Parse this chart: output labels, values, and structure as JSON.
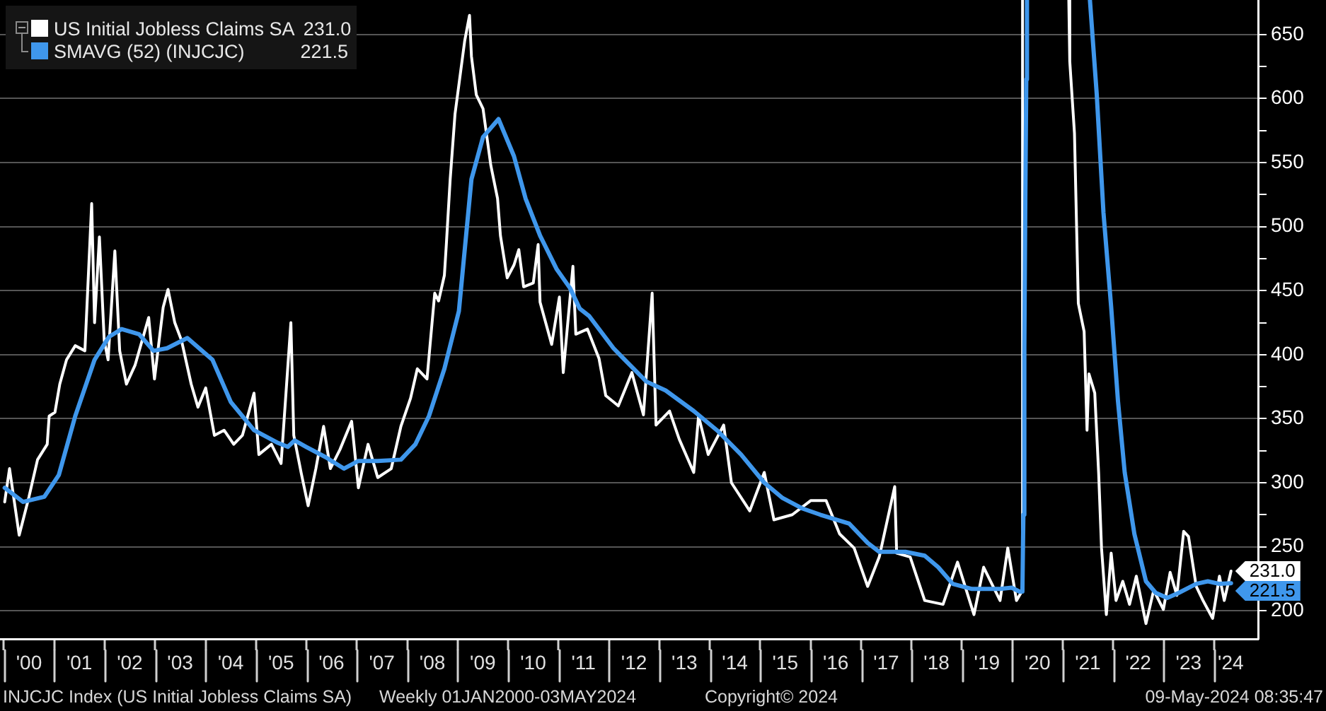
{
  "chart_data": {
    "type": "line",
    "series": [
      {
        "name": "US Initial Jobless Claims SA",
        "color": "#ffffff",
        "x": [
          "2000-01-07",
          "2000-02-11",
          "2000-04-21",
          "2000-07-01",
          "2000-09-01",
          "2000-11-10",
          "2000-11-24",
          "2001-01-05",
          "2001-02-09",
          "2001-03-30",
          "2001-06-01",
          "2001-08-10",
          "2001-09-28",
          "2001-10-19",
          "2001-11-23",
          "2001-12-28",
          "2002-01-25",
          "2002-03-15",
          "2002-04-19",
          "2002-06-07",
          "2002-08-09",
          "2002-11-15",
          "2002-12-27",
          "2003-02-28",
          "2003-04-04",
          "2003-05-23",
          "2003-07-11",
          "2003-09-19",
          "2003-11-07",
          "2004-01-02",
          "2004-03-05",
          "2004-05-14",
          "2004-07-23",
          "2004-09-24",
          "2004-12-17",
          "2005-01-21",
          "2005-04-22",
          "2005-07-01",
          "2005-09-10",
          "2005-10-01",
          "2005-11-25",
          "2006-01-13",
          "2006-03-10",
          "2006-05-05",
          "2006-06-23",
          "2006-09-01",
          "2006-11-24",
          "2007-01-12",
          "2007-03-23",
          "2007-06-01",
          "2007-09-07",
          "2007-11-16",
          "2008-01-25",
          "2008-03-14",
          "2008-05-23",
          "2008-07-18",
          "2008-08-15",
          "2008-09-26",
          "2008-10-10",
          "2008-11-07",
          "2008-12-12",
          "2009-02-20",
          "2009-03-27",
          "2009-04-10",
          "2009-05-15",
          "2009-07-03",
          "2009-08-28",
          "2009-10-16",
          "2009-11-06",
          "2009-12-25",
          "2010-02-12",
          "2010-03-19",
          "2010-04-23",
          "2010-07-02",
          "2010-08-06",
          "2010-08-20",
          "2010-11-12",
          "2011-01-07",
          "2011-02-04",
          "2011-04-15",
          "2011-05-06",
          "2011-07-29",
          "2011-10-21",
          "2011-12-09",
          "2012-03-09",
          "2012-06-15",
          "2012-09-07",
          "2012-11-09",
          "2012-12-07",
          "2013-03-15",
          "2013-05-24",
          "2013-09-06",
          "2013-10-11",
          "2013-12-20",
          "2014-04-11",
          "2014-06-06",
          "2014-10-17",
          "2015-01-30",
          "2015-04-10",
          "2015-08-21",
          "2016-01-01",
          "2016-04-22",
          "2016-07-29",
          "2016-11-11",
          "2017-02-17",
          "2017-05-12",
          "2017-09-01",
          "2017-09-15",
          "2017-12-22",
          "2018-04-06",
          "2018-08-17",
          "2018-11-30",
          "2019-03-29",
          "2019-06-07",
          "2019-10-04",
          "2019-11-29",
          "2020-01-31",
          "2020-03-14",
          "2020-03-15",
          "2020-09-01",
          "2021-02-13",
          "2021-02-20",
          "2021-03-26",
          "2021-04-23",
          "2021-06-04",
          "2021-06-25",
          "2021-07-09",
          "2021-08-20",
          "2021-09-17",
          "2021-10-08",
          "2021-11-12",
          "2021-12-17",
          "2022-01-21",
          "2022-03-11",
          "2022-04-29",
          "2022-06-17",
          "2022-08-26",
          "2022-10-21",
          "2022-12-30",
          "2023-02-17",
          "2023-04-07",
          "2023-05-26",
          "2023-06-30",
          "2023-08-25",
          "2023-10-13",
          "2023-12-22",
          "2024-02-09",
          "2024-03-15",
          "2024-05-03"
        ],
        "values": [
          285,
          311,
          259,
          289,
          318,
          330,
          352,
          355,
          377,
          396,
          407,
          403,
          518,
          425,
          492,
          411,
          396,
          481,
          403,
          377,
          392,
          429,
          381,
          437,
          451,
          425,
          411,
          377,
          359,
          374,
          337,
          341,
          330,
          337,
          370,
          322,
          330,
          315,
          425,
          337,
          307,
          282,
          311,
          344,
          311,
          326,
          348,
          296,
          330,
          304,
          311,
          344,
          366,
          389,
          381,
          448,
          442,
          462,
          486,
          537,
          588,
          645,
          665,
          633,
          603,
          592,
          548,
          522,
          493,
          460,
          470,
          482,
          453,
          456,
          486,
          441,
          408,
          445,
          386,
          469,
          416,
          420,
          397,
          368,
          360,
          386,
          353,
          448,
          345,
          356,
          334,
          308,
          352,
          322,
          345,
          300,
          278,
          308,
          271,
          275,
          286,
          286,
          260,
          249,
          219,
          242,
          297,
          245,
          242,
          208,
          205,
          238,
          197,
          234,
          208,
          249,
          208,
          216,
          677,
          null,
          677,
          629,
          573,
          440,
          418,
          341,
          385,
          370,
          308,
          249,
          197,
          245,
          208,
          223,
          205,
          227,
          190,
          216,
          201,
          230,
          212,
          262,
          258,
          219,
          208,
          194,
          227,
          208,
          231
        ],
        "value_labels": [
          null,
          null,
          null,
          null,
          null,
          null,
          null,
          null,
          null,
          null,
          null,
          null,
          null,
          null,
          null,
          null,
          null,
          null,
          null,
          null,
          null,
          null,
          null,
          null,
          null,
          null,
          null,
          null,
          null,
          null,
          null,
          null,
          null,
          null,
          null,
          null,
          null,
          null,
          null,
          null,
          null,
          null,
          null,
          null,
          null,
          null,
          null,
          null,
          null,
          null,
          null,
          null,
          null,
          null,
          null,
          null,
          null,
          null,
          null,
          null,
          null,
          null,
          null,
          null,
          null,
          null,
          null,
          null,
          null,
          null,
          null,
          null,
          null,
          null,
          null,
          null,
          null,
          null,
          null,
          null,
          null,
          null,
          null,
          null,
          null,
          null,
          null,
          null,
          null,
          null,
          null,
          null,
          null,
          null,
          null,
          null,
          null,
          null,
          null,
          null,
          null,
          null,
          null,
          null,
          null,
          null,
          null,
          null,
          null,
          null,
          null,
          null,
          null,
          null,
          null,
          null,
          null,
          null,
          null,
          null,
          null,
          null,
          null,
          null,
          null,
          null,
          null,
          null,
          null,
          null,
          null,
          null,
          null,
          null,
          null,
          null,
          null,
          null,
          null,
          null,
          null,
          null,
          null,
          null,
          null,
          null,
          null,
          null,
          "231.0"
        ]
      },
      {
        "name": "SMAVG (52) (INJCJC)",
        "color": "#3f97ec",
        "x": [
          "2000-01-07",
          "2000-05-19",
          "2000-10-20",
          "2001-02-02",
          "2001-06-01",
          "2001-10-19",
          "2002-02-01",
          "2002-05-03",
          "2002-09-06",
          "2002-12-20",
          "2003-03-28",
          "2003-08-22",
          "2004-02-20",
          "2004-07-02",
          "2004-12-17",
          "2005-06-10",
          "2005-08-19",
          "2005-10-07",
          "2005-12-30",
          "2006-05-19",
          "2006-09-29",
          "2007-01-12",
          "2007-06-01",
          "2007-11-16",
          "2008-02-29",
          "2008-06-06",
          "2008-09-26",
          "2009-01-09",
          "2009-04-10",
          "2009-07-03",
          "2009-10-23",
          "2010-02-12",
          "2010-05-07",
          "2010-08-20",
          "2010-12-17",
          "2011-03-25",
          "2011-06-03",
          "2011-08-12",
          "2012-02-03",
          "2012-04-06",
          "2012-09-28",
          "2013-02-15",
          "2013-09-06",
          "2014-02-21",
          "2014-08-15",
          "2015-01-30",
          "2015-06-12",
          "2015-10-30",
          "2016-03-11",
          "2016-10-07",
          "2017-02-17",
          "2017-05-12",
          "2017-11-17",
          "2018-04-06",
          "2018-07-13",
          "2018-10-26",
          "2019-03-15",
          "2019-10-04",
          "2019-12-27",
          "2020-02-21",
          "2020-03-14",
          "2020-03-21",
          "2020-03-28",
          "2020-04-04",
          "2020-04-11",
          "2020-04-16",
          "2020-12-04",
          "2021-07-16",
          "2021-09-03",
          "2021-10-22",
          "2021-12-17",
          "2022-02-04",
          "2022-03-25",
          "2022-06-03",
          "2022-08-26",
          "2022-11-04",
          "2023-01-27",
          "2023-04-21",
          "2023-08-25",
          "2023-11-17",
          "2024-02-09",
          "2024-05-03"
        ],
        "values": [
          296,
          285,
          289,
          306,
          352,
          396,
          414,
          420,
          416,
          403,
          405,
          413,
          396,
          363,
          341,
          331,
          328,
          333,
          328,
          320,
          311,
          317,
          317,
          318,
          330,
          352,
          389,
          434,
          537,
          570,
          584,
          555,
          522,
          493,
          467,
          452,
          436,
          430,
          405,
          398,
          379,
          372,
          356,
          341,
          322,
          300,
          288,
          280,
          275,
          268,
          253,
          246,
          246,
          243,
          234,
          221,
          217,
          217,
          218,
          215,
          215,
          275,
          405,
          520,
          615,
          677,
          null,
          677,
          604,
          511,
          437,
          364,
          308,
          260,
          223,
          214,
          210,
          214,
          221,
          223,
          221,
          221.5
        ],
        "value_labels": [
          null,
          null,
          null,
          null,
          null,
          null,
          null,
          null,
          null,
          null,
          null,
          null,
          null,
          null,
          null,
          null,
          null,
          null,
          null,
          null,
          null,
          null,
          null,
          null,
          null,
          null,
          null,
          null,
          null,
          null,
          null,
          null,
          null,
          null,
          null,
          null,
          null,
          null,
          null,
          null,
          null,
          null,
          null,
          null,
          null,
          null,
          null,
          null,
          null,
          null,
          null,
          null,
          null,
          null,
          null,
          null,
          null,
          null,
          null,
          null,
          null,
          null,
          null,
          null,
          null,
          null,
          null,
          null,
          null,
          null,
          null,
          null,
          null,
          null,
          null,
          null,
          null,
          null,
          null,
          null,
          null,
          "221.5"
        ]
      }
    ],
    "xlim": [
      "1999-12-04",
      "2024-11-15"
    ],
    "xticks": [
      {
        "value": "2000-01-01",
        "label": null
      },
      {
        "value": "2000-07-01",
        "label": "'00"
      },
      {
        "value": "2001-01-01",
        "label": null
      },
      {
        "value": "2001-07-01",
        "label": "'01"
      },
      {
        "value": "2002-01-01",
        "label": null
      },
      {
        "value": "2002-07-01",
        "label": "'02"
      },
      {
        "value": "2003-01-01",
        "label": null
      },
      {
        "value": "2003-07-01",
        "label": "'03"
      },
      {
        "value": "2004-01-01",
        "label": null
      },
      {
        "value": "2004-07-01",
        "label": "'04"
      },
      {
        "value": "2005-01-01",
        "label": null
      },
      {
        "value": "2005-07-01",
        "label": "'05"
      },
      {
        "value": "2006-01-01",
        "label": null
      },
      {
        "value": "2006-07-01",
        "label": "'06"
      },
      {
        "value": "2007-01-01",
        "label": null
      },
      {
        "value": "2007-07-01",
        "label": "'07"
      },
      {
        "value": "2008-01-01",
        "label": null
      },
      {
        "value": "2008-07-01",
        "label": "'08"
      },
      {
        "value": "2009-01-01",
        "label": null
      },
      {
        "value": "2009-07-01",
        "label": "'09"
      },
      {
        "value": "2010-01-01",
        "label": null
      },
      {
        "value": "2010-07-01",
        "label": "'10"
      },
      {
        "value": "2011-01-01",
        "label": null
      },
      {
        "value": "2011-07-01",
        "label": "'11"
      },
      {
        "value": "2012-01-01",
        "label": null
      },
      {
        "value": "2012-07-01",
        "label": "'12"
      },
      {
        "value": "2013-01-01",
        "label": null
      },
      {
        "value": "2013-07-01",
        "label": "'13"
      },
      {
        "value": "2014-01-01",
        "label": null
      },
      {
        "value": "2014-07-01",
        "label": "'14"
      },
      {
        "value": "2015-01-01",
        "label": null
      },
      {
        "value": "2015-07-01",
        "label": "'15"
      },
      {
        "value": "2016-01-01",
        "label": null
      },
      {
        "value": "2016-07-01",
        "label": "'16"
      },
      {
        "value": "2017-01-01",
        "label": null
      },
      {
        "value": "2017-07-01",
        "label": "'17"
      },
      {
        "value": "2018-01-01",
        "label": null
      },
      {
        "value": "2018-07-01",
        "label": "'18"
      },
      {
        "value": "2019-01-01",
        "label": null
      },
      {
        "value": "2019-07-01",
        "label": "'19"
      },
      {
        "value": "2020-01-01",
        "label": null
      },
      {
        "value": "2020-07-01",
        "label": "'20"
      },
      {
        "value": "2021-01-01",
        "label": null
      },
      {
        "value": "2021-07-01",
        "label": "'21"
      },
      {
        "value": "2022-01-01",
        "label": null
      },
      {
        "value": "2022-07-01",
        "label": "'22"
      },
      {
        "value": "2023-01-01",
        "label": null
      },
      {
        "value": "2023-07-01",
        "label": "'23"
      },
      {
        "value": "2024-01-01",
        "label": null
      },
      {
        "value": "2024-05-01",
        "label": "'24"
      }
    ],
    "ylim": [
      178,
      677
    ],
    "yticks": [
      200,
      {
        "value": 225,
        "label": null
      },
      250,
      {
        "value": 275,
        "label": null
      },
      300,
      {
        "value": 325,
        "label": null
      },
      350,
      {
        "value": 375,
        "label": null
      },
      400,
      {
        "value": 425,
        "label": null
      },
      450,
      {
        "value": 475,
        "label": null
      },
      500,
      {
        "value": 525,
        "label": null
      },
      550,
      {
        "value": 575,
        "label": null
      },
      600,
      {
        "value": 625,
        "label": null
      },
      650
    ],
    "grid": "y",
    "legend": "top left",
    "marker": "none",
    "line_style": "solid",
    "annotations": [
      "INJCJC Index (US Initial Jobless Claims SA)",
      "Weekly 01JAN2000-03MAY2024",
      "Copyright© 2024",
      "09-May-2024 08:35:47"
    ]
  }
}
